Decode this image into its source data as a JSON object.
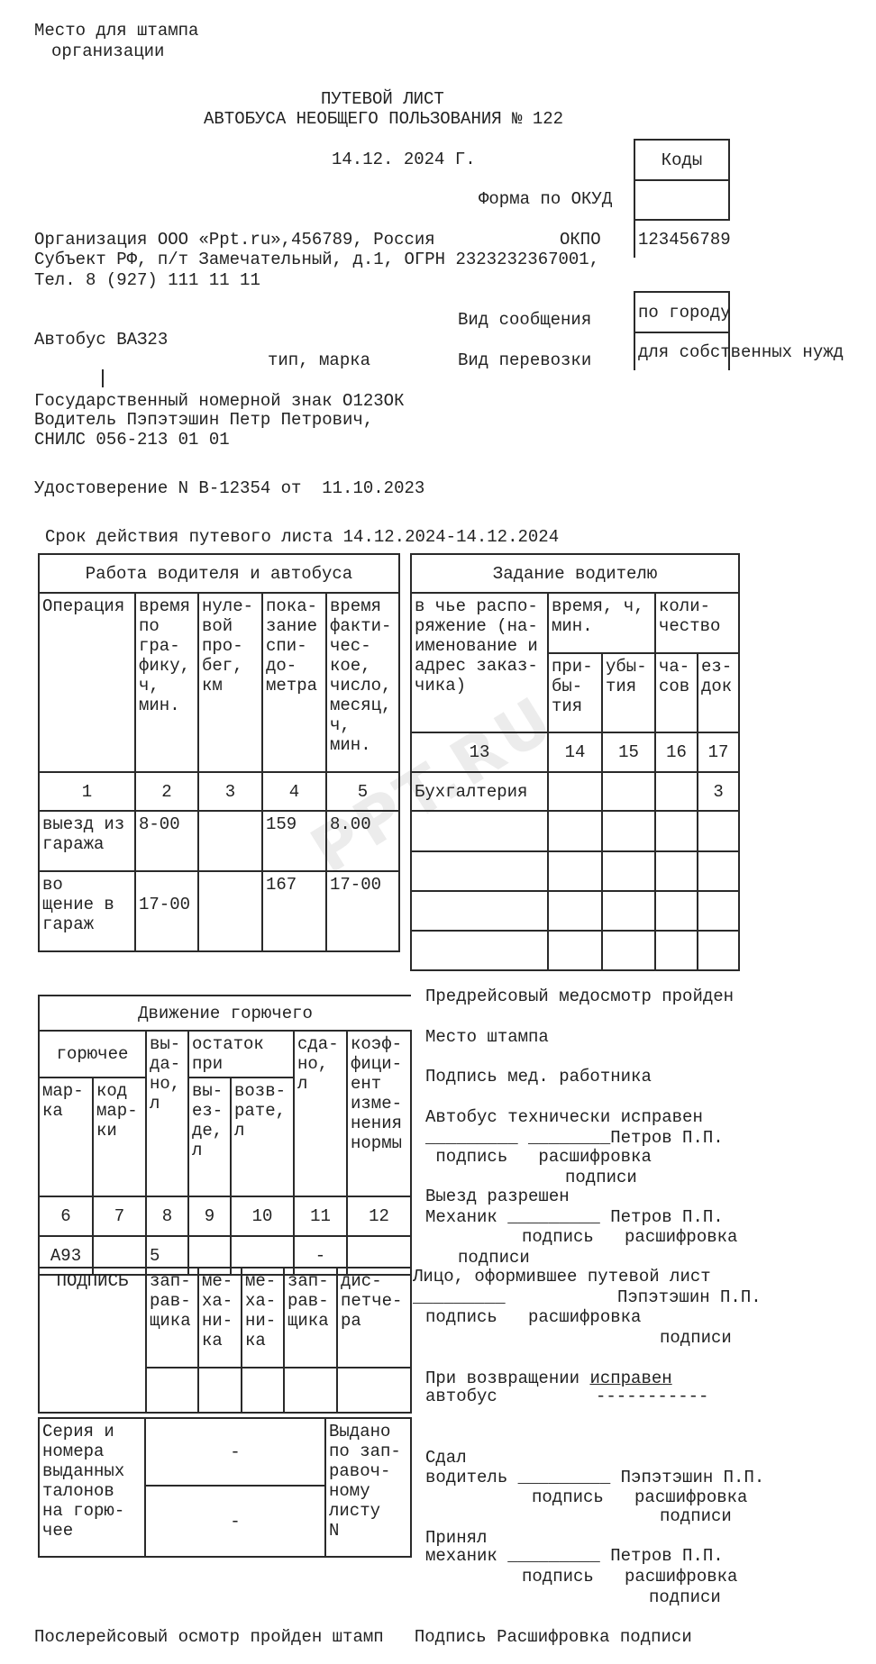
{
  "header": {
    "stamp_place": "Место для штампа",
    "stamp_org": "организации",
    "title": "ПУТЕВОЙ ЛИСТ",
    "subtitle": "АВТОБУСА НЕОБЩЕГО ПОЛЬЗОВАНИЯ № 122",
    "date": "14.12. 2024 Г."
  },
  "codes": {
    "title": "Коды",
    "okud_label": "Форма по ОКУД",
    "okud_value": "",
    "okpo_label": "ОКПО",
    "okpo_value": "123456789",
    "message_label": "Вид сообщения",
    "message_value": "по городу",
    "transport_label": "Вид перевозки",
    "transport_value": "для собственных нужд"
  },
  "organization": {
    "line1": "Организация ООО «Ppt.ru»,456789, Россия",
    "line2": "Субъект РФ, п/т Замечательный, д.1, ОГРН 2323232367001,",
    "line3": "Тел. 8 (927) 111 11 11"
  },
  "vehicle": {
    "bus": "Автобус ВАЗ23",
    "type_caption": "тип, марка",
    "plate": "Государственный номерной знак О123ОК",
    "driver": "Водитель Пэпэтэшин Петр Петрович,",
    "snils": "СНИЛС 056-213 01 01",
    "license": "Удостоверение N В-12354 от  11.10.2023",
    "validity": "Срок действия путевого листа 14.12.2024-14.12.2024"
  },
  "work_table": {
    "title": "Работа водителя и автобуса",
    "headers": [
      "Операция",
      "время\nпо\nгра-\nфику,\nч,\nмин.",
      "нуле-\nвой\nпро-\nбег,\nкм",
      "пока-\nзание\nспи-\nдо-\nметра",
      "время\nфакти-\nчес-\nкое,\nчисло,\nмесяц,\nч,\nмин."
    ],
    "numbers": [
      "1",
      "2",
      "3",
      "4",
      "5"
    ],
    "rows": [
      [
        "выезд из\nгаража",
        "8-00",
        "",
        "159",
        "8.00"
      ],
      [
        "во\nщение в\nгараж",
        "\n17-00",
        "",
        "167",
        "17-00"
      ]
    ]
  },
  "task_table": {
    "title": "Задание водителю",
    "customer_header": "в чье распо-\nряжение (на-\nименование и\nадрес заказ-\nчика)",
    "time_header": "время, ч,\nмин.",
    "count_header": "коли-\nчество",
    "sub_headers": [
      "при-\nбы-\nтия",
      "убы-\nтия",
      "ча-\nсов",
      "ез-\nдок"
    ],
    "numbers": [
      "13",
      "14",
      "15",
      "16",
      "17"
    ],
    "rows": [
      [
        "Бухгалтерия",
        "",
        "",
        "",
        "3"
      ],
      [
        "",
        "",
        "",
        "",
        ""
      ],
      [
        "",
        "",
        "",
        "",
        ""
      ],
      [
        "",
        "",
        "",
        "",
        ""
      ],
      [
        "",
        "",
        "",
        "",
        ""
      ]
    ]
  },
  "fuel_table": {
    "title": "Движение горючего",
    "fuel_header": "горючее",
    "issued_header": "вы-\nда-\nно,\nл",
    "remainder_header": "остаток\nпри",
    "returned_header": "сда-\nно,\nл",
    "coef_header": "коэф-\nфици-\nент\nизме-\nнения\nнормы",
    "sub_headers": [
      "мар-\nка",
      "код\nмар-\nки",
      "вы-\nез-\nде,\nл",
      "возв-\nрате,\nл"
    ],
    "numbers": [
      "6",
      "7",
      "8",
      "9",
      "10",
      "11",
      "12"
    ],
    "row": [
      "А93",
      "",
      "5",
      "",
      "",
      "-",
      ""
    ]
  },
  "signature_table": {
    "label": "ПОДПИСЬ",
    "headers": [
      "зап-\nрав-\nщика",
      "ме-\nха-\nни-\nка",
      "ме-\nха-\nни-\nка",
      "зап-\nрав-\nщика",
      "дис-\nпетче-\nра"
    ]
  },
  "coupons_table": {
    "label": "Серия и\nномера\nвыданных\nталонов\nна горю-\nчее",
    "value1": "-",
    "value2": "-",
    "issued_label": "Выдано\nпо зап-\nравоч-\nному\nлисту\nN"
  },
  "right_block": {
    "med_check": "Предрейсовый медосмотр пройден",
    "stamp_place": "Место штампа",
    "med_signature": "Подпись мед. работника",
    "tech_ok": "Автобус технически исправен",
    "tech_sign_line": "_________ ________Петров П.П.",
    "tech_sign_caption": " подпись   расшифровка",
    "tech_sign_caption2": "подписи",
    "exit_allowed": "Выезд разрешен",
    "mechanic_line": "Механик _________ Петров П.П.",
    "mechanic_caption": "подпись   расшифровка",
    "mechanic_caption2": "подписи",
    "issuer": "Лицо, оформившее путевой лист",
    "issuer_blank": "_________",
    "issuer_name": "Пэпэтэшин П.П.",
    "issuer_caption": "подпись   расшифровка",
    "issuer_caption2": "подписи",
    "return_label": "При возвращении ",
    "return_value": "исправен",
    "return_bus": "автобус",
    "return_dashes": "-----------",
    "handed": "Сдал",
    "driver_line": "водитель _________ Пэпэтэшин П.П.",
    "driver_caption": "подпись   расшифровка",
    "driver_caption2": "подписи",
    "accepted": "Принял",
    "accept_mechanic_line": "механик _________ Петров П.П.",
    "accept_caption": "подпись   расшифровка",
    "accept_caption2": "подписи"
  },
  "footer": {
    "post_check": "Послерейсовый осмотр пройден штамп   Подпись Расшифровка подписи"
  },
  "watermark": "PPT.RU"
}
